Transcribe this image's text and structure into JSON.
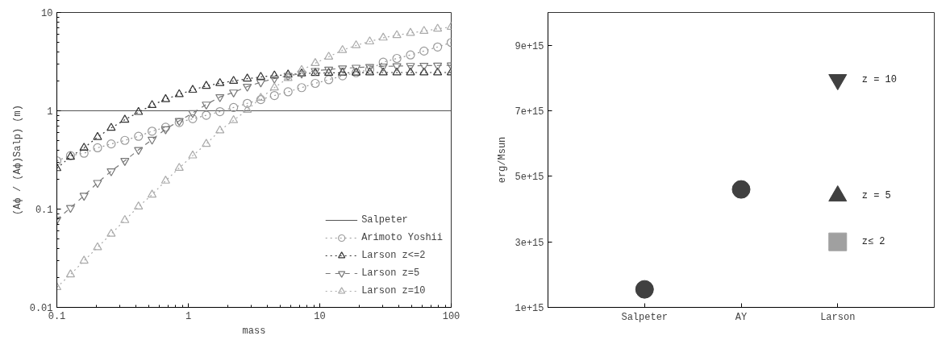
{
  "chart_data": [
    {
      "type": "line",
      "xlabel": "mass",
      "ylabel": "(Aϕ / (Aϕ)Salp) (m)",
      "log": "xy",
      "xlim": [
        0.1,
        100
      ],
      "ylim": [
        0.01,
        10
      ],
      "xticks": [
        0.1,
        1,
        10,
        100
      ],
      "yticks": [
        0.01,
        0.1,
        1,
        10
      ],
      "grid": false,
      "legend": "bottom right",
      "x": [
        0.1,
        0.127,
        0.161,
        0.204,
        0.259,
        0.329,
        0.418,
        0.53,
        0.672,
        0.853,
        1.08,
        1.37,
        1.74,
        2.21,
        2.81,
        3.56,
        4.52,
        5.74,
        7.28,
        9.24,
        11.7,
        14.9,
        18.9,
        24.0,
        30.4,
        38.6,
        49.0,
        62.1,
        78.8,
        100
      ],
      "series": [
        {
          "name": "Salpeter",
          "color": "#555555",
          "marker": "none",
          "line_style": "solid",
          "x": [
            0.1,
            100
          ],
          "values": [
            1,
            1
          ]
        },
        {
          "name": "Arimoto Yoshii",
          "color": "#999999",
          "marker": "circle",
          "line_style": "dotted",
          "values": [
            0.31,
            0.35,
            0.37,
            0.42,
            0.46,
            0.5,
            0.55,
            0.62,
            0.68,
            0.76,
            0.83,
            0.9,
            0.98,
            1.08,
            1.19,
            1.3,
            1.43,
            1.56,
            1.72,
            1.9,
            2.07,
            2.27,
            2.44,
            2.63,
            3.12,
            3.41,
            3.7,
            4.05,
            4.46,
            4.95
          ]
        },
        {
          "name": "Larson z<=2",
          "color": "#333333",
          "marker": "triangle",
          "line_style": "dotted",
          "values": [
            0.26,
            0.34,
            0.42,
            0.54,
            0.67,
            0.81,
            0.97,
            1.14,
            1.31,
            1.47,
            1.63,
            1.79,
            1.91,
            2.01,
            2.12,
            2.21,
            2.28,
            2.33,
            2.39,
            2.42,
            2.43,
            2.44,
            2.44,
            2.45,
            2.45,
            2.45,
            2.45,
            2.45,
            2.45,
            2.45
          ]
        },
        {
          "name": "Larson z=5",
          "color": "#777777",
          "marker": "triangle_down",
          "line_style": "dashed",
          "values": [
            0.078,
            0.103,
            0.137,
            0.185,
            0.243,
            0.31,
            0.4,
            0.51,
            0.65,
            0.79,
            0.95,
            1.16,
            1.38,
            1.54,
            1.76,
            1.95,
            2.13,
            2.27,
            2.4,
            2.55,
            2.63,
            2.71,
            2.75,
            2.8,
            2.83,
            2.85,
            2.87,
            2.88,
            2.89,
            2.9
          ]
        },
        {
          "name": "Larson z=10",
          "color": "#aaaaaa",
          "marker": "triangle",
          "line_style": "dotted",
          "values": [
            0.016,
            0.0216,
            0.0298,
            0.0408,
            0.056,
            0.077,
            0.106,
            0.14,
            0.194,
            0.262,
            0.35,
            0.46,
            0.63,
            0.8,
            1.02,
            1.35,
            1.72,
            2.15,
            2.59,
            3.05,
            3.54,
            4.14,
            4.63,
            5.06,
            5.53,
            5.87,
            6.19,
            6.47,
            6.82,
            7.13
          ]
        }
      ]
    },
    {
      "type": "scatter",
      "ylabel": "erg/Msun",
      "categories": [
        "Salpeter",
        "AY",
        "Larson"
      ],
      "ylim": [
        1000000000000000.0,
        1e+16
      ],
      "grid": false,
      "yticks": [
        {
          "value": 1000000000000000.0,
          "label": "1e+15"
        },
        {
          "value": 3000000000000000.0,
          "label": "3e+15"
        },
        {
          "value": 5000000000000000.0,
          "label": "5e+15"
        },
        {
          "value": 7000000000000000.0,
          "label": "7e+15"
        },
        {
          "value": 9000000000000000.0,
          "label": "9e+15"
        }
      ],
      "series": [
        {
          "color": "#404040",
          "marker": "circle",
          "values": [
            1550000000000000.0,
            4600000000000000.0,
            null
          ]
        },
        {
          "name": "z = 10",
          "color": "#404040",
          "marker": "triangle_down",
          "values": [
            null,
            null,
            7950000000000000.0
          ]
        },
        {
          "name": "z = 5",
          "color": "#404040",
          "marker": "triangle",
          "values": [
            null,
            null,
            4400000000000000.0
          ]
        },
        {
          "name": "z≤ 2",
          "color": "#a0a0a0",
          "marker": "square",
          "values": [
            null,
            null,
            3000000000000000.0
          ]
        }
      ]
    }
  ]
}
